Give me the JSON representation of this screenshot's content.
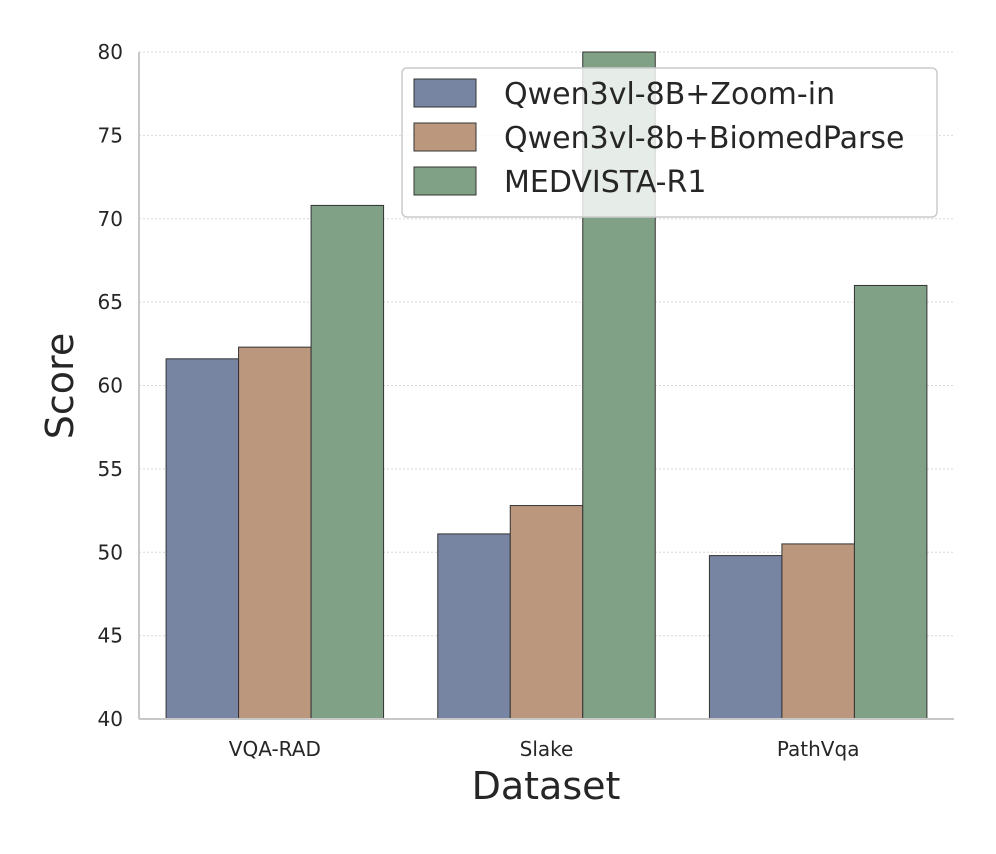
{
  "chart_data": {
    "type": "bar",
    "title": "",
    "xlabel": "Dataset",
    "ylabel": "Score",
    "categories": [
      "VQA-RAD",
      "Slake",
      "PathVqa"
    ],
    "ylim": [
      40,
      80
    ],
    "yticks": [
      40,
      45,
      50,
      55,
      60,
      65,
      70,
      75,
      80
    ],
    "grid": true,
    "legend_position": "top-right",
    "series": [
      {
        "name": "Qwen3vl-8B+Zoom-in",
        "color": "#7784a2",
        "values": [
          61.6,
          51.1,
          49.8
        ]
      },
      {
        "name": "Qwen3vl-8b+BiomedParse",
        "color": "#bb977e",
        "values": [
          62.3,
          52.8,
          50.5
        ]
      },
      {
        "name": "MEDVISTA-R1",
        "color": "#80a185",
        "values": [
          70.8,
          80.0,
          66.0
        ]
      }
    ]
  }
}
